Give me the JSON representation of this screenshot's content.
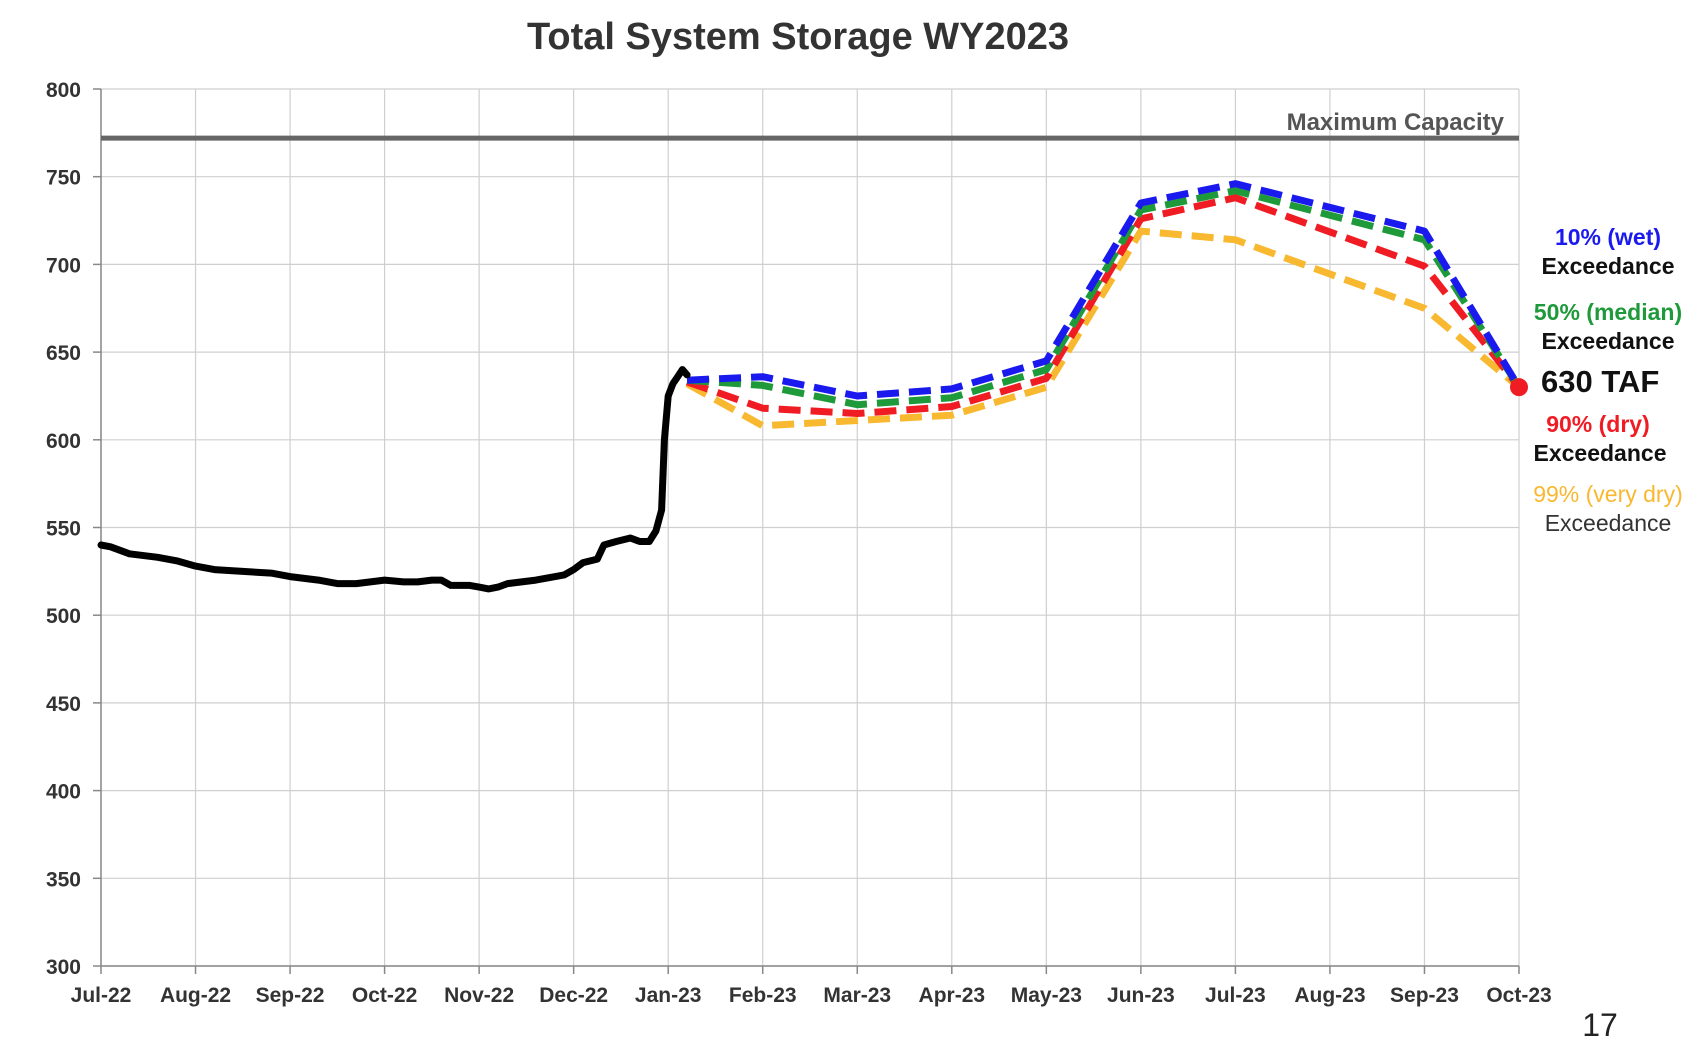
{
  "chart_data": {
    "type": "line",
    "title": "Total System Storage WY2023",
    "xlabel": "",
    "ylabel": "",
    "ylim": [
      300,
      800
    ],
    "yticks": [
      300,
      350,
      400,
      450,
      500,
      550,
      600,
      650,
      700,
      750,
      800
    ],
    "x_categories": [
      "Jul-22",
      "Aug-22",
      "Sep-22",
      "Oct-22",
      "Nov-22",
      "Dec-22",
      "Jan-23",
      "Feb-23",
      "Mar-23",
      "Apr-23",
      "May-23",
      "Jun-23",
      "Jul-23",
      "Aug-23",
      "Sep-23",
      "Oct-23"
    ],
    "grid": true,
    "max_capacity": {
      "label": "Maximum Capacity",
      "value": 772,
      "color": "#666666"
    },
    "observed": {
      "color": "#000000",
      "points": [
        [
          0,
          540
        ],
        [
          0.1,
          539
        ],
        [
          0.3,
          535
        ],
        [
          0.6,
          533
        ],
        [
          0.8,
          531
        ],
        [
          1.0,
          528
        ],
        [
          1.2,
          526
        ],
        [
          1.5,
          525
        ],
        [
          1.8,
          524
        ],
        [
          2.0,
          522
        ],
        [
          2.3,
          520
        ],
        [
          2.5,
          518
        ],
        [
          2.7,
          518
        ],
        [
          2.85,
          519
        ],
        [
          3.0,
          520
        ],
        [
          3.2,
          519
        ],
        [
          3.35,
          519
        ],
        [
          3.5,
          520
        ],
        [
          3.6,
          520
        ],
        [
          3.7,
          517
        ],
        [
          3.9,
          517
        ],
        [
          4.0,
          516
        ],
        [
          4.1,
          515
        ],
        [
          4.2,
          516
        ],
        [
          4.3,
          518
        ],
        [
          4.6,
          520
        ],
        [
          4.9,
          523
        ],
        [
          5.0,
          526
        ],
        [
          5.1,
          530
        ],
        [
          5.25,
          532
        ],
        [
          5.32,
          540
        ],
        [
          5.45,
          542
        ],
        [
          5.6,
          544
        ],
        [
          5.7,
          542
        ],
        [
          5.8,
          542
        ],
        [
          5.87,
          548
        ],
        [
          5.93,
          560
        ],
        [
          5.96,
          600
        ],
        [
          6.0,
          625
        ],
        [
          6.05,
          632
        ],
        [
          6.1,
          636
        ],
        [
          6.15,
          640
        ],
        [
          6.2,
          637
        ]
      ]
    },
    "series": [
      {
        "name": "10% (wet)",
        "color": "#1a1aee",
        "x": [
          6.2,
          7,
          8,
          9,
          10,
          11,
          12,
          14,
          15
        ],
        "values": [
          634,
          636,
          625,
          629,
          645,
          735,
          746,
          719,
          630
        ]
      },
      {
        "name": "50% (median)",
        "color": "#1e9a3a",
        "x": [
          6.2,
          7,
          8,
          9,
          10,
          11,
          12,
          14,
          15
        ],
        "values": [
          634,
          631,
          620,
          624,
          640,
          731,
          742,
          714,
          630
        ]
      },
      {
        "name": "90% (dry)",
        "color": "#f01c24",
        "x": [
          6.2,
          7,
          8,
          9,
          10,
          11,
          12,
          14,
          15
        ],
        "values": [
          633,
          618,
          615,
          619,
          635,
          726,
          738,
          699,
          630
        ]
      },
      {
        "name": "99% (very dry)",
        "color": "#f8b830",
        "x": [
          6.2,
          7,
          8,
          9,
          10,
          11,
          12,
          14,
          15
        ],
        "values": [
          632,
          608,
          611,
          614,
          630,
          719,
          714,
          675,
          630
        ]
      }
    ],
    "legend_sub": "Exceedance",
    "end_point": {
      "label": "630 TAF",
      "value": 630,
      "color": "#f01c24"
    }
  },
  "page_number": "17"
}
